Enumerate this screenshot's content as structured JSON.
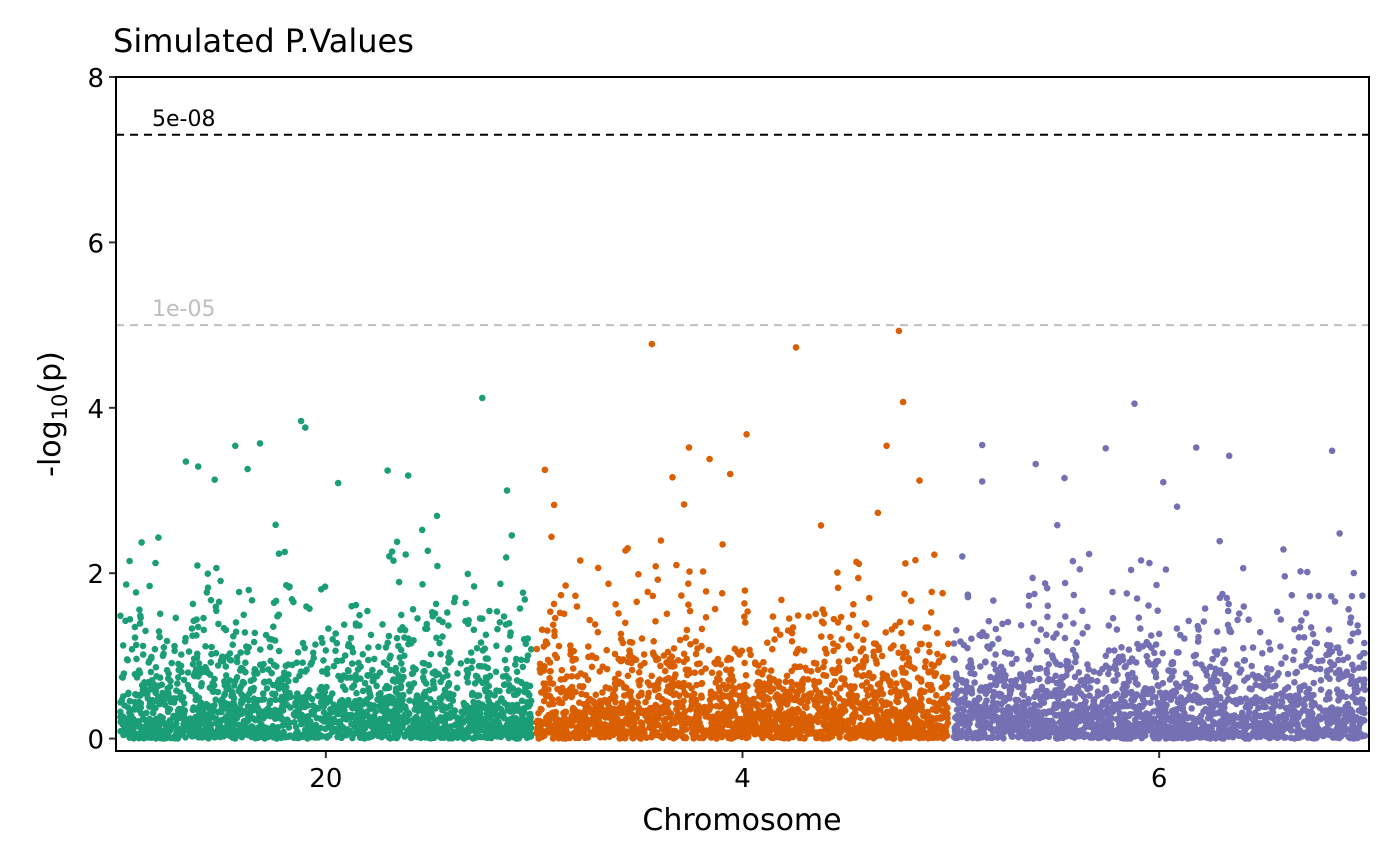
{
  "chart_data": {
    "type": "scatter",
    "title": "Simulated P.Values",
    "xlabel": "Chromosome",
    "ylabel": {
      "prefix": "-log",
      "subscript": "10",
      "suffix": "(p)"
    },
    "ylim": [
      -0.15,
      8.0
    ],
    "yticks": [
      "0",
      "2",
      "4",
      "6",
      "8"
    ],
    "grid": false,
    "chromosomes": [
      {
        "name": "20",
        "color": "#1b9e77",
        "n_points": 2000
      },
      {
        "name": "4",
        "color": "#d95f02",
        "n_points": 2000
      },
      {
        "name": "6",
        "color": "#7570b3",
        "n_points": 2000
      }
    ],
    "thresholds": [
      {
        "label": "5e-08",
        "value": 7.30103,
        "color": "#000000"
      },
      {
        "label": "1e-05",
        "value": 5.0,
        "color": "#bebebe"
      }
    ],
    "top_points": [
      {
        "chrom": "20",
        "pos": 0.88,
        "y": 4.12
      },
      {
        "chrom": "20",
        "pos": 0.44,
        "y": 3.84
      },
      {
        "chrom": "20",
        "pos": 0.45,
        "y": 3.76
      },
      {
        "chrom": "20",
        "pos": 0.34,
        "y": 3.57
      },
      {
        "chrom": "20",
        "pos": 0.28,
        "y": 3.54
      },
      {
        "chrom": "20",
        "pos": 0.16,
        "y": 3.35
      },
      {
        "chrom": "20",
        "pos": 0.19,
        "y": 3.29
      },
      {
        "chrom": "20",
        "pos": 0.31,
        "y": 3.26
      },
      {
        "chrom": "20",
        "pos": 0.65,
        "y": 3.24
      },
      {
        "chrom": "20",
        "pos": 0.7,
        "y": 3.18
      },
      {
        "chrom": "20",
        "pos": 0.23,
        "y": 3.13
      },
      {
        "chrom": "20",
        "pos": 0.53,
        "y": 3.09
      },
      {
        "chrom": "20",
        "pos": 0.94,
        "y": 3.0
      },
      {
        "chrom": "4",
        "pos": 0.28,
        "y": 4.77
      },
      {
        "chrom": "4",
        "pos": 0.63,
        "y": 4.73
      },
      {
        "chrom": "4",
        "pos": 0.88,
        "y": 4.93
      },
      {
        "chrom": "4",
        "pos": 0.89,
        "y": 4.07
      },
      {
        "chrom": "4",
        "pos": 0.51,
        "y": 3.68
      },
      {
        "chrom": "4",
        "pos": 0.37,
        "y": 3.52
      },
      {
        "chrom": "4",
        "pos": 0.85,
        "y": 3.54
      },
      {
        "chrom": "4",
        "pos": 0.42,
        "y": 3.38
      },
      {
        "chrom": "4",
        "pos": 0.02,
        "y": 3.25
      },
      {
        "chrom": "4",
        "pos": 0.47,
        "y": 3.2
      },
      {
        "chrom": "4",
        "pos": 0.33,
        "y": 3.16
      },
      {
        "chrom": "4",
        "pos": 0.93,
        "y": 3.12
      },
      {
        "chrom": "6",
        "pos": 0.44,
        "y": 4.05
      },
      {
        "chrom": "6",
        "pos": 0.07,
        "y": 3.55
      },
      {
        "chrom": "6",
        "pos": 0.37,
        "y": 3.51
      },
      {
        "chrom": "6",
        "pos": 0.59,
        "y": 3.52
      },
      {
        "chrom": "6",
        "pos": 0.67,
        "y": 3.42
      },
      {
        "chrom": "6",
        "pos": 0.92,
        "y": 3.48
      },
      {
        "chrom": "6",
        "pos": 0.2,
        "y": 3.32
      },
      {
        "chrom": "6",
        "pos": 0.07,
        "y": 3.11
      },
      {
        "chrom": "6",
        "pos": 0.27,
        "y": 3.15
      },
      {
        "chrom": "6",
        "pos": 0.51,
        "y": 3.1
      }
    ]
  }
}
